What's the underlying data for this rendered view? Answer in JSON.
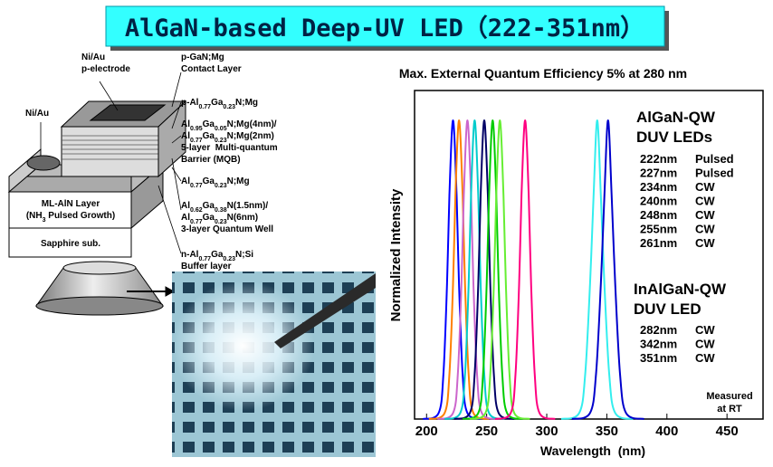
{
  "header": {
    "title": "AlGaN-based Deep-UV LED（222-351nm）"
  },
  "diagram": {
    "labels": [
      {
        "lines": [
          [
            "Ni/Au"
          ],
          [
            "p-electrode"
          ]
        ]
      },
      {
        "lines": [
          [
            "Ni/Au"
          ]
        ]
      },
      {
        "lines": [
          [
            "p-GaN;Mg"
          ],
          [
            "Contact Layer"
          ]
        ]
      },
      {
        "lines": [
          [
            "p-Al",
            "0.77",
            "Ga",
            "0.23",
            "N;Mg"
          ]
        ]
      },
      {
        "lines": [
          [
            "Al",
            "0.95",
            "Ga",
            "0.05",
            "N;Mg(4nm)/"
          ],
          [
            "Al",
            "0.77",
            "Ga",
            "0.23",
            "N;Mg(2nm)"
          ],
          [
            "5-layer  Multi-quantum"
          ],
          [
            "Barrier (MQB)"
          ]
        ]
      },
      {
        "lines": [
          [
            "Al",
            "0.77",
            "Ga",
            "0.23",
            "N;Mg"
          ]
        ]
      },
      {
        "lines": [
          [
            "Al",
            "0.62",
            "Ga",
            "0.38",
            "N(1.5nm)/"
          ],
          [
            "Al",
            "0.77",
            "Ga",
            "0.23",
            "N(6nm)"
          ],
          [
            "3-layer Quantum Well"
          ]
        ]
      },
      {
        "lines": [
          [
            "n-Al",
            "0.77",
            "Ga",
            "0.23",
            "N;Si"
          ],
          [
            "Buffer layer"
          ]
        ]
      },
      {
        "lines": [
          [
            "ML-AlN Layer"
          ],
          [
            "(NH",
            "3",
            " Pulsed Growth)"
          ]
        ]
      },
      {
        "lines": [
          [
            "Sapphire sub."
          ]
        ]
      }
    ]
  },
  "chart_data": {
    "type": "line",
    "title": "Max. External Quantum Efficiency 5% at 280 nm",
    "x_label": "Wavelength  (nm)",
    "y_label": "Normalized Intensity",
    "xlim": [
      190,
      480
    ],
    "xticks": [
      200,
      250,
      300,
      350,
      400,
      450
    ],
    "ylim": [
      0,
      1.1
    ],
    "annotations": [
      [
        "AlGaN-QW",
        "DUV LEDs"
      ],
      [
        "InAlGaN-QW",
        "DUV LED"
      ],
      [
        "Measured",
        "at RT"
      ]
    ],
    "series": [
      {
        "name": "222nm",
        "mode": "Pulsed",
        "color": "#0000ff",
        "x": [
          197,
          210,
          214,
          217,
          219,
          222,
          225,
          227,
          230,
          234,
          247
        ],
        "values": [
          0,
          0.02,
          0.15,
          0.45,
          0.75,
          1,
          0.75,
          0.45,
          0.15,
          0.02,
          0
        ]
      },
      {
        "name": "227nm",
        "mode": "Pulsed",
        "color": "#ff8000",
        "x": [
          202,
          215,
          219,
          222,
          224,
          227,
          230,
          232,
          235,
          239,
          252
        ],
        "values": [
          0,
          0.02,
          0.15,
          0.45,
          0.75,
          1,
          0.75,
          0.45,
          0.15,
          0.02,
          0
        ]
      },
      {
        "name": "234nm",
        "mode": "CW",
        "color": "#cc66cc",
        "x": [
          209,
          222,
          226,
          229,
          231,
          234,
          237,
          239,
          242,
          246,
          259
        ],
        "values": [
          0,
          0.02,
          0.15,
          0.45,
          0.75,
          1,
          0.75,
          0.45,
          0.15,
          0.02,
          0
        ]
      },
      {
        "name": "240nm",
        "mode": "CW",
        "color": "#00cccc",
        "x": [
          215,
          228,
          232,
          235,
          237,
          240,
          243,
          245,
          248,
          252,
          265
        ],
        "values": [
          0,
          0.02,
          0.15,
          0.45,
          0.75,
          1,
          0.75,
          0.45,
          0.15,
          0.02,
          0
        ]
      },
      {
        "name": "248nm",
        "mode": "CW",
        "color": "#000066",
        "x": [
          223,
          236,
          240,
          243,
          245,
          248,
          251,
          253,
          256,
          260,
          273
        ],
        "values": [
          0,
          0.02,
          0.15,
          0.45,
          0.75,
          1,
          0.75,
          0.45,
          0.15,
          0.02,
          0
        ]
      },
      {
        "name": "255nm",
        "mode": "CW",
        "color": "#00cc00",
        "x": [
          230,
          243,
          247,
          250,
          252,
          255,
          258,
          260,
          263,
          267,
          280
        ],
        "values": [
          0,
          0.02,
          0.15,
          0.45,
          0.75,
          1,
          0.75,
          0.45,
          0.15,
          0.02,
          0
        ]
      },
      {
        "name": "261nm",
        "mode": "CW",
        "color": "#66ee33",
        "x": [
          236,
          249,
          253,
          256,
          258,
          261,
          264,
          266,
          269,
          273,
          286
        ],
        "values": [
          0,
          0.02,
          0.15,
          0.45,
          0.75,
          1,
          0.75,
          0.45,
          0.15,
          0.02,
          0
        ]
      },
      {
        "name": "282nm",
        "mode": "CW",
        "color": "#ff0080",
        "x": [
          257,
          270,
          274,
          277,
          279,
          282,
          285,
          287,
          290,
          294,
          307
        ],
        "values": [
          0,
          0.02,
          0.15,
          0.45,
          0.75,
          1,
          0.75,
          0.45,
          0.15,
          0.02,
          0
        ]
      },
      {
        "name": "342nm",
        "mode": "CW",
        "color": "#33eeee",
        "x": [
          312,
          327,
          332,
          336,
          339,
          342,
          345,
          348,
          352,
          357,
          372
        ],
        "values": [
          0,
          0.02,
          0.15,
          0.45,
          0.75,
          1,
          0.75,
          0.45,
          0.15,
          0.02,
          0
        ]
      },
      {
        "name": "351nm",
        "mode": "CW",
        "color": "#0000cc",
        "x": [
          321,
          336,
          341,
          345,
          348,
          351,
          354,
          357,
          361,
          366,
          381
        ],
        "values": [
          0,
          0.02,
          0.15,
          0.45,
          0.75,
          1,
          0.75,
          0.45,
          0.15,
          0.02,
          0
        ]
      }
    ]
  }
}
